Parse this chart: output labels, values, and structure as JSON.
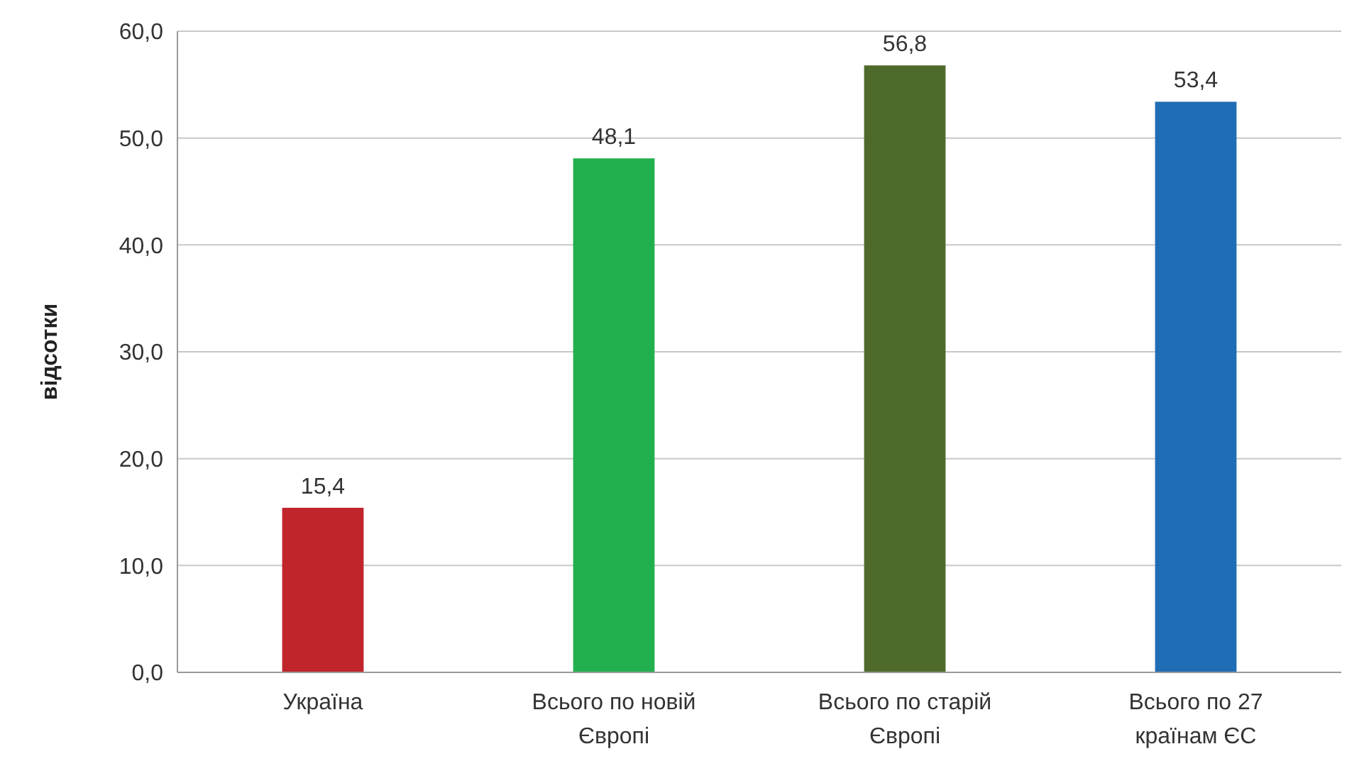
{
  "chart_data": {
    "type": "bar",
    "ylabel": "відсотки",
    "categories": [
      "Україна",
      "Всього по новій Європі",
      "Всього по старій Європі",
      "Всього по 27 країнам ЄС"
    ],
    "values": [
      15.4,
      48.1,
      56.8,
      53.4
    ],
    "colors": [
      "#c0252b",
      "#22b04e",
      "#4e6a2b",
      "#1f6db5"
    ],
    "value_labels": [
      "15,4",
      "48,1",
      "56,8",
      "53,4"
    ],
    "ylim": [
      0,
      60
    ],
    "yticks": [
      {
        "value": 0,
        "label": "0,0"
      },
      {
        "value": 10,
        "label": "10,0"
      },
      {
        "value": 20,
        "label": "20,0"
      },
      {
        "value": 30,
        "label": "30,0"
      },
      {
        "value": 40,
        "label": "40,0"
      },
      {
        "value": 50,
        "label": "50,0"
      },
      {
        "value": 60,
        "label": "60,0"
      }
    ],
    "grid": "y"
  }
}
